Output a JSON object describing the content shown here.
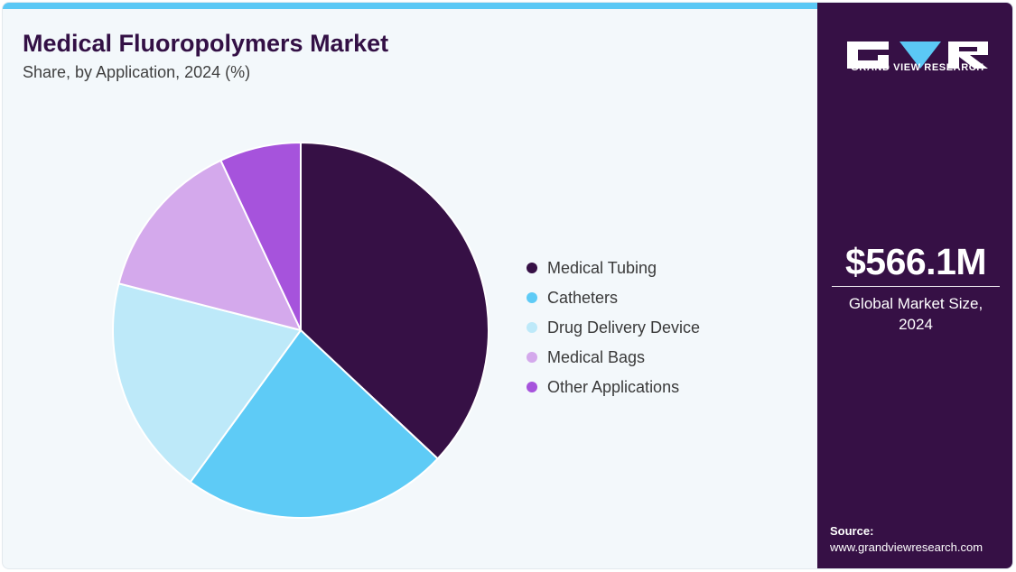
{
  "header": {
    "title": "Medical Fluoropolymers Market",
    "subtitle": "Share, by Application, 2024 (%)"
  },
  "colors": {
    "accent_bar": "#5bc8f5",
    "title": "#331045",
    "side_panel": "#361045",
    "background": "#f3f8fb"
  },
  "chart_data": {
    "type": "pie",
    "title": "Medical Fluoropolymers Market",
    "subtitle": "Share, by Application, 2024 (%)",
    "legend_position": "right",
    "start_angle_deg": 0,
    "direction": "clockwise",
    "slices": [
      {
        "label": "Medical Tubing",
        "value": 37,
        "color": "#361045"
      },
      {
        "label": "Catheters",
        "value": 23,
        "color": "#5ecbf6"
      },
      {
        "label": "Drug Delivery Device",
        "value": 19,
        "color": "#bde9f9"
      },
      {
        "label": "Medical Bags",
        "value": 14,
        "color": "#d4a9ec"
      },
      {
        "label": "Other Applications",
        "value": 7,
        "color": "#a653dc"
      }
    ]
  },
  "side_panel": {
    "logo_icon": "gvr-logo-icon",
    "logo_text": "GRAND VIEW RESEARCH",
    "market_size": "$566.1M",
    "market_caption": "Global Market Size, 2024",
    "source_label": "Source:",
    "source_url": "www.grandviewresearch.com"
  }
}
